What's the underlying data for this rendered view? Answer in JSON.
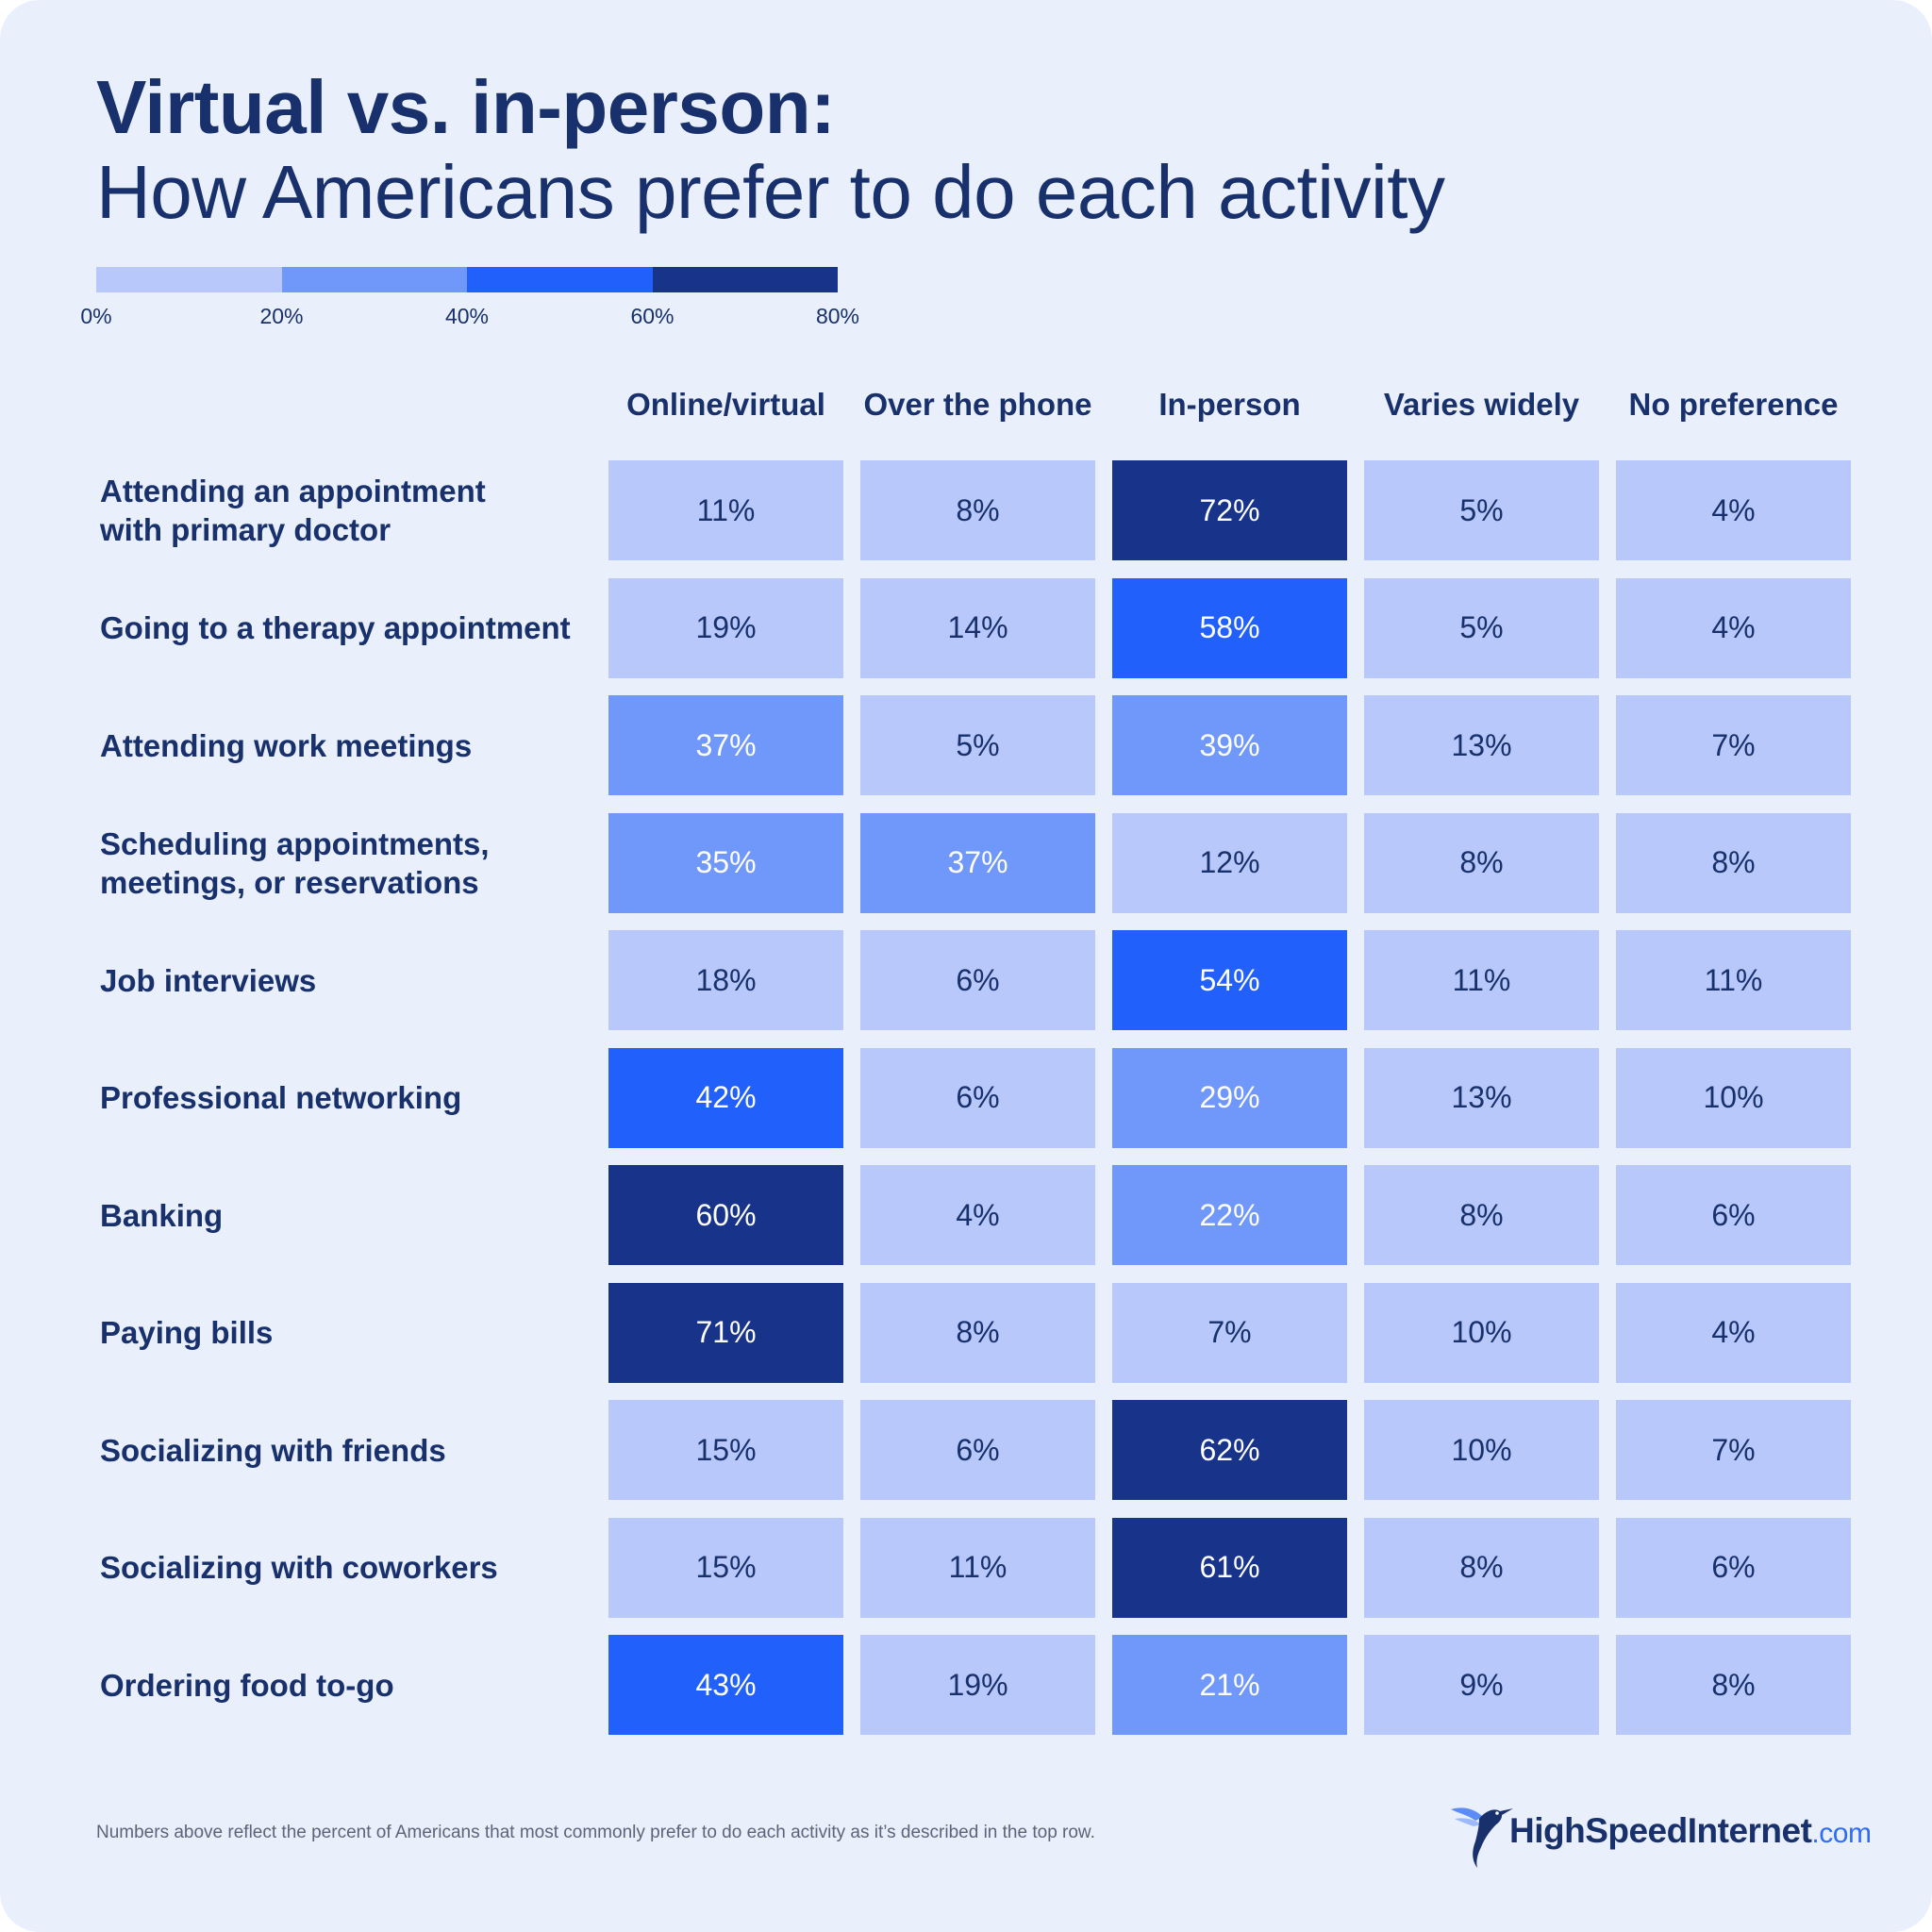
{
  "title_line1": "Virtual vs. in-person:",
  "title_line2": "How Americans prefer to do each activity",
  "legend": {
    "ticks": [
      "0%",
      "20%",
      "40%",
      "60%",
      "80%"
    ],
    "colors": [
      "#b8c8fb",
      "#7098fa",
      "#2260fb",
      "#18338a"
    ]
  },
  "chart_data": {
    "type": "heatmap",
    "title": "Virtual vs. in-person: How Americans prefer to do each activity",
    "columns": [
      "Online/virtual",
      "Over the phone",
      "In-person",
      "Varies widely",
      "No preference"
    ],
    "rows": [
      "Attending an appointment\nwith primary doctor",
      "Going to a therapy appointment",
      "Attending work meetings",
      "Scheduling appointments,\nmeetings, or reservations",
      "Job interviews",
      "Professional networking",
      "Banking",
      "Paying bills",
      "Socializing with friends",
      "Socializing with coworkers",
      "Ordering food to-go"
    ],
    "values": [
      [
        11,
        8,
        72,
        5,
        4
      ],
      [
        19,
        14,
        58,
        5,
        4
      ],
      [
        37,
        5,
        39,
        13,
        7
      ],
      [
        35,
        37,
        12,
        8,
        8
      ],
      [
        18,
        6,
        54,
        11,
        11
      ],
      [
        42,
        6,
        29,
        13,
        10
      ],
      [
        60,
        4,
        22,
        8,
        6
      ],
      [
        71,
        8,
        7,
        10,
        4
      ],
      [
        15,
        6,
        62,
        10,
        7
      ],
      [
        15,
        11,
        61,
        8,
        6
      ],
      [
        43,
        19,
        21,
        9,
        8
      ]
    ],
    "unit": "%",
    "color_scale": {
      "bins": [
        0,
        20,
        40,
        60,
        80
      ],
      "colors": [
        "#b8c8fb",
        "#7098fa",
        "#2260fb",
        "#18338a"
      ]
    }
  },
  "footnote": "Numbers above reflect the percent of Americans that most commonly prefer to do each activity as it’s described in the top row.",
  "logo": {
    "name": "HighSpeedInternet",
    "tld": ".com",
    "icon": "hummingbird-icon"
  }
}
